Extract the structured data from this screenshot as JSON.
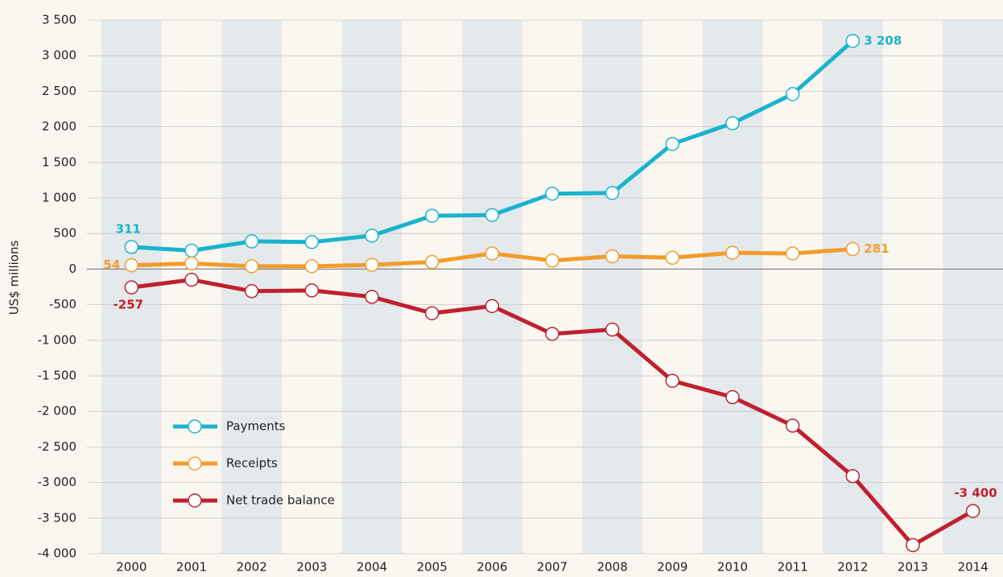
{
  "chart_data": {
    "type": "line",
    "y_label": "US$ millions",
    "categories": [
      "2000",
      "2001",
      "2002",
      "2003",
      "2004",
      "2005",
      "2006",
      "2007",
      "2008",
      "2009",
      "2010",
      "2011",
      "2012",
      "2013",
      "2014"
    ],
    "series": [
      {
        "name": "Payments",
        "color": "#1ab3cf",
        "values": [
          311,
          260,
          390,
          380,
          470,
          750,
          760,
          1060,
          1070,
          1760,
          2050,
          2460,
          3208,
          null,
          null
        ],
        "value_labels": [
          "311",
          null,
          null,
          null,
          null,
          null,
          null,
          null,
          null,
          null,
          null,
          null,
          "3 208",
          null,
          null
        ]
      },
      {
        "name": "Receipts",
        "color": "#f39c2b",
        "values": [
          54,
          80,
          40,
          40,
          60,
          100,
          220,
          120,
          180,
          160,
          230,
          220,
          281,
          null,
          null
        ],
        "value_labels": [
          "54",
          null,
          null,
          null,
          null,
          null,
          null,
          null,
          null,
          null,
          null,
          null,
          "281",
          null,
          null
        ]
      },
      {
        "name": "Net trade balance",
        "color": "#c0202f",
        "values": [
          -257,
          -150,
          -310,
          -300,
          -390,
          -620,
          -520,
          -910,
          -850,
          -1570,
          -1800,
          -2200,
          -2910,
          -3880,
          -3400
        ],
        "value_labels": [
          "-257",
          null,
          null,
          null,
          null,
          null,
          null,
          null,
          null,
          null,
          null,
          null,
          null,
          null,
          "-3 400"
        ]
      }
    ],
    "ylim": [
      -4000,
      3500
    ],
    "yticks": [
      {
        "value": -4000,
        "label": "-4 000"
      },
      {
        "value": -3500,
        "label": "-3 500"
      },
      {
        "value": -3000,
        "label": "-3 000"
      },
      {
        "value": -2500,
        "label": "-2 500"
      },
      {
        "value": -2000,
        "label": "-2 000"
      },
      {
        "value": -1500,
        "label": "-1 500"
      },
      {
        "value": -1000,
        "label": "-1 000"
      },
      -500,
      0,
      500,
      {
        "value": 1000,
        "label": "1 000"
      },
      {
        "value": 1500,
        "label": "1 500"
      },
      {
        "value": 2000,
        "label": "2 000"
      },
      {
        "value": 2500,
        "label": "2 500"
      },
      {
        "value": 3000,
        "label": "3 000"
      },
      {
        "value": 3500,
        "label": "3 500"
      }
    ],
    "grid": true,
    "alternating_bands": true,
    "legend": "lower left"
  }
}
